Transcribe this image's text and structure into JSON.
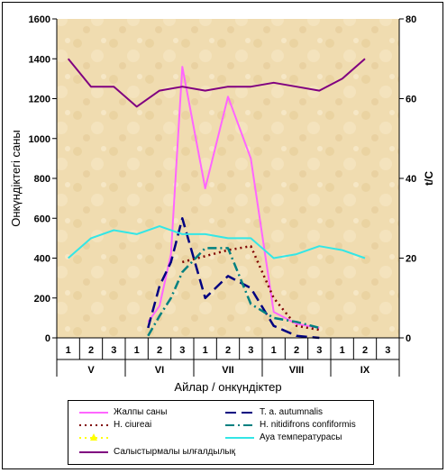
{
  "chart_data": {
    "type": "line",
    "x": [
      "1",
      "2",
      "3",
      "1",
      "2",
      "3",
      "1",
      "2",
      "3",
      "1",
      "2",
      "3",
      "1",
      "2",
      "3"
    ],
    "month_groups": [
      {
        "label": "V",
        "span": [
          0,
          2
        ]
      },
      {
        "label": "VI",
        "span": [
          3,
          5
        ]
      },
      {
        "label": "VII",
        "span": [
          6,
          8
        ]
      },
      {
        "label": "VIII",
        "span": [
          9,
          11
        ]
      },
      {
        "label": "IX",
        "span": [
          12,
          14
        ]
      }
    ],
    "xlabel": "Айлар / онкүндіктер",
    "ylabel": "Онкүндіктегі саны",
    "ylabel_right": "t/C",
    "ylim": [
      0,
      1600
    ],
    "yticks": [
      0,
      200,
      400,
      600,
      800,
      1000,
      1200,
      1400,
      1600
    ],
    "ylim_right": [
      0,
      80
    ],
    "yticks_right": [
      0,
      20,
      40,
      60,
      80
    ],
    "grid": false,
    "legend_position": "bottom",
    "series": [
      {
        "name": "Жалпы саны",
        "axis": "left",
        "color": "#ff66ff",
        "dash": "solid",
        "points": [
          [
            3.5,
            80
          ],
          [
            4,
            160
          ],
          [
            4.5,
            420
          ],
          [
            5,
            1360
          ],
          [
            6,
            750
          ],
          [
            7,
            1210
          ],
          [
            8,
            900
          ],
          [
            9,
            130
          ],
          [
            10,
            70
          ],
          [
            11,
            50
          ]
        ]
      },
      {
        "name": "T. a. autumnalis",
        "axis": "left",
        "color": "#000080",
        "dash": "longdash",
        "points": [
          [
            3.5,
            50
          ],
          [
            4,
            260
          ],
          [
            4.5,
            380
          ],
          [
            5,
            600
          ],
          [
            6,
            200
          ],
          [
            7,
            310
          ],
          [
            8,
            250
          ],
          [
            9,
            60
          ],
          [
            10,
            10
          ],
          [
            11,
            0
          ]
        ]
      },
      {
        "name": "H. ciureai",
        "axis": "left",
        "color": "#800000",
        "dash": "dot",
        "points": [
          [
            5,
            380
          ],
          [
            6,
            410
          ],
          [
            7,
            440
          ],
          [
            8,
            460
          ],
          [
            9,
            200
          ],
          [
            10,
            60
          ],
          [
            11,
            40
          ]
        ]
      },
      {
        "name": "H. nitidifrons confiformis",
        "axis": "left",
        "color": "#008080",
        "dash": "dashdot",
        "points": [
          [
            3.5,
            10
          ],
          [
            4,
            110
          ],
          [
            4.5,
            200
          ],
          [
            5,
            330
          ],
          [
            6,
            450
          ],
          [
            7,
            450
          ],
          [
            8,
            170
          ],
          [
            9,
            100
          ],
          [
            10,
            80
          ],
          [
            11,
            50
          ]
        ]
      },
      {
        "name": "",
        "axis": "left",
        "color": "#ffff00",
        "dash": "dot",
        "marker": "triangle",
        "points": []
      },
      {
        "name": "Ауа температурасы",
        "axis": "right",
        "color": "#33e6e6",
        "dash": "solid",
        "points": [
          [
            0,
            20
          ],
          [
            1,
            25
          ],
          [
            2,
            27
          ],
          [
            3,
            26
          ],
          [
            4,
            28
          ],
          [
            5,
            26
          ],
          [
            6,
            26
          ],
          [
            7,
            25
          ],
          [
            8,
            25
          ],
          [
            9,
            20
          ],
          [
            10,
            21
          ],
          [
            11,
            23
          ],
          [
            12,
            22
          ],
          [
            13,
            20
          ]
        ]
      },
      {
        "name": "Салыстырмалы ылғалдылық",
        "axis": "right",
        "color": "#800080",
        "dash": "solid",
        "points": [
          [
            0,
            70
          ],
          [
            1,
            63
          ],
          [
            2,
            63
          ],
          [
            3,
            58
          ],
          [
            4,
            62
          ],
          [
            5,
            63
          ],
          [
            6,
            62
          ],
          [
            7,
            63
          ],
          [
            8,
            63
          ],
          [
            9,
            64
          ],
          [
            10,
            63
          ],
          [
            11,
            62
          ],
          [
            12,
            65
          ],
          [
            13,
            70
          ]
        ]
      }
    ]
  }
}
